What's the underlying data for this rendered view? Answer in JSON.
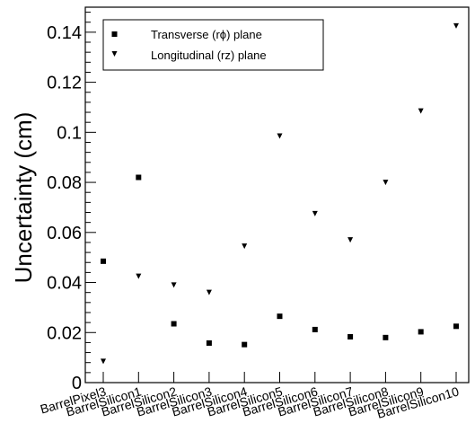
{
  "chart_data": {
    "type": "scatter",
    "categories": [
      "BarrelPixel3",
      "BarrelSilicon1",
      "BarrelSilicon2",
      "BarrelSilicon3",
      "BarrelSilicon4",
      "BarrelSilicon5",
      "BarrelSilicon6",
      "BarrelSilicon7",
      "BarrelSilicon8",
      "BarrelSilicon9",
      "BarrelSilicon10"
    ],
    "series": [
      {
        "name": "Transverse (rϕ) plane",
        "marker": "square",
        "values": [
          0.0485,
          0.082,
          0.0235,
          0.0158,
          0.0152,
          0.0265,
          0.0212,
          0.0183,
          0.018,
          0.0203,
          0.0225
        ]
      },
      {
        "name": "Longitudinal (rz) plane",
        "marker": "triangle-down",
        "values": [
          0.0085,
          0.0425,
          0.039,
          0.036,
          0.0545,
          0.0985,
          0.0675,
          0.057,
          0.08,
          0.1085,
          0.1425
        ]
      }
    ],
    "title": "",
    "xlabel": "",
    "ylabel": "Uncertainty (cm)",
    "ylim": [
      0,
      0.15
    ],
    "yticks": [
      0,
      0.02,
      0.04,
      0.06,
      0.08,
      0.1,
      0.12,
      0.14
    ],
    "ytick_labels": [
      "0",
      "0.02",
      "0.04",
      "0.06",
      "0.08",
      "0.1",
      "0.12",
      "0.14"
    ],
    "legend_position": "top-left",
    "grid": false,
    "colors": {
      "marker": "#000000",
      "axis": "#000000",
      "background": "#ffffff"
    }
  }
}
